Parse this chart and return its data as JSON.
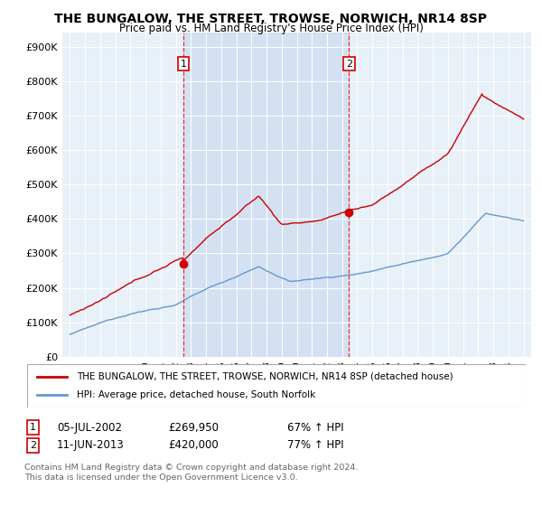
{
  "title": "THE BUNGALOW, THE STREET, TROWSE, NORWICH, NR14 8SP",
  "subtitle": "Price paid vs. HM Land Registry's House Price Index (HPI)",
  "ylabel_ticks": [
    "£0",
    "£100K",
    "£200K",
    "£300K",
    "£400K",
    "£500K",
    "£600K",
    "£700K",
    "£800K",
    "£900K"
  ],
  "ytick_values": [
    0,
    100000,
    200000,
    300000,
    400000,
    500000,
    600000,
    700000,
    800000,
    900000
  ],
  "ylim": [
    0,
    940000
  ],
  "sale1_date": "05-JUL-2002",
  "sale1_price": 269950,
  "sale1_hpi": "67% ↑ HPI",
  "sale1_x": 2002.5,
  "sale2_date": "11-JUN-2013",
  "sale2_price": 420000,
  "sale2_hpi": "77% ↑ HPI",
  "sale2_x": 2013.45,
  "legend_label1": "THE BUNGALOW, THE STREET, TROWSE, NORWICH, NR14 8SP (detached house)",
  "legend_label2": "HPI: Average price, detached house, South Norfolk",
  "footer1": "Contains HM Land Registry data © Crown copyright and database right 2024.",
  "footer2": "This data is licensed under the Open Government Licence v3.0.",
  "property_color": "#cc0000",
  "hpi_color": "#6699cc",
  "vline_color": "#ee3333",
  "shade_color": "#ddeeff",
  "background_color": "#ffffff",
  "plot_bg_color": "#e8f0f8"
}
